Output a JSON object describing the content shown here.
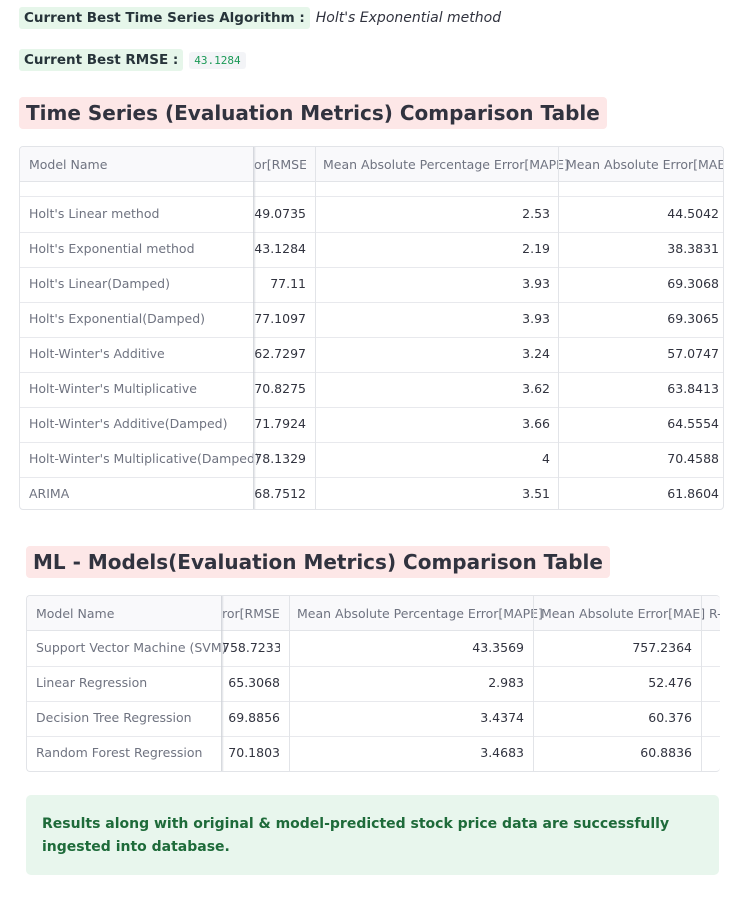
{
  "best_algorithm": {
    "label": "Current Best Time Series Algorithm :",
    "value": "Holt's Exponential method"
  },
  "best_rmse": {
    "label": "Current Best RMSE :",
    "value": "43.1284"
  },
  "ts_table": {
    "title": "Time Series (Evaluation Metrics) Comparison Table",
    "columns": [
      "Model Name",
      "or[RMSE]",
      "Mean Absolute Percentage Error[MAPE]",
      "Mean Absolute Error[MAE]"
    ],
    "rows": [
      [
        "Holt's Linear method",
        "49.0735",
        "2.53",
        "44.5042"
      ],
      [
        "Holt's Exponential method",
        "43.1284",
        "2.19",
        "38.3831"
      ],
      [
        "Holt's Linear(Damped)",
        "77.11",
        "3.93",
        "69.3068"
      ],
      [
        "Holt's Exponential(Damped)",
        "77.1097",
        "3.93",
        "69.3065"
      ],
      [
        "Holt-Winter's Additive",
        "62.7297",
        "3.24",
        "57.0747"
      ],
      [
        "Holt-Winter's Multiplicative",
        "70.8275",
        "3.62",
        "63.8413"
      ],
      [
        "Holt-Winter's Additive(Damped)",
        "71.7924",
        "3.66",
        "64.5554"
      ],
      [
        "Holt-Winter's Multiplicative(Damped)",
        "78.1329",
        "4",
        "70.4588"
      ],
      [
        "ARIMA",
        "68.7512",
        "3.51",
        "61.8604"
      ]
    ]
  },
  "ml_table": {
    "title": "ML - Models(Evaluation Metrics) Comparison Table",
    "columns": [
      "Model Name",
      "ror[RMSE]",
      "Mean Absolute Percentage Error[MAPE]",
      "Mean Absolute Error[MAE]",
      "R-"
    ],
    "rows": [
      [
        "Support Vector Machine (SVM)",
        "758.7233",
        "43.3569",
        "757.2364"
      ],
      [
        "Linear Regression",
        "65.3068",
        "2.983",
        "52.476"
      ],
      [
        "Decision Tree Regression",
        "69.8856",
        "3.4374",
        "60.376"
      ],
      [
        "Random Forest Regression",
        "70.1803",
        "3.4683",
        "60.8836"
      ]
    ]
  },
  "success_message": "Results along with original & model-predicted stock price data are successfully ingested into database."
}
